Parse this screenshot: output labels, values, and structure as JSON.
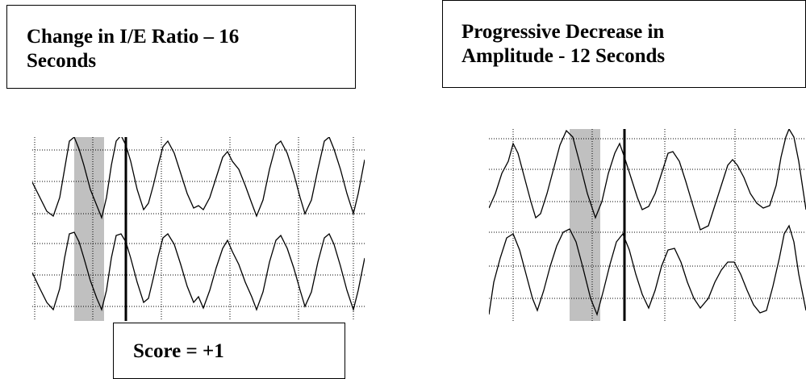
{
  "panels": [
    {
      "title_line1": "Change in I/E Ratio – 16",
      "title_line2": "Seconds",
      "score_label": "Score = +1"
    },
    {
      "title_line1": "Progressive Decrease in",
      "title_line2": "Amplitude - 12 Seconds"
    }
  ],
  "colors": {
    "trace": "#000000",
    "gridline": "#000000",
    "highlight": "#c0c0c0",
    "marker": "#000000"
  }
}
